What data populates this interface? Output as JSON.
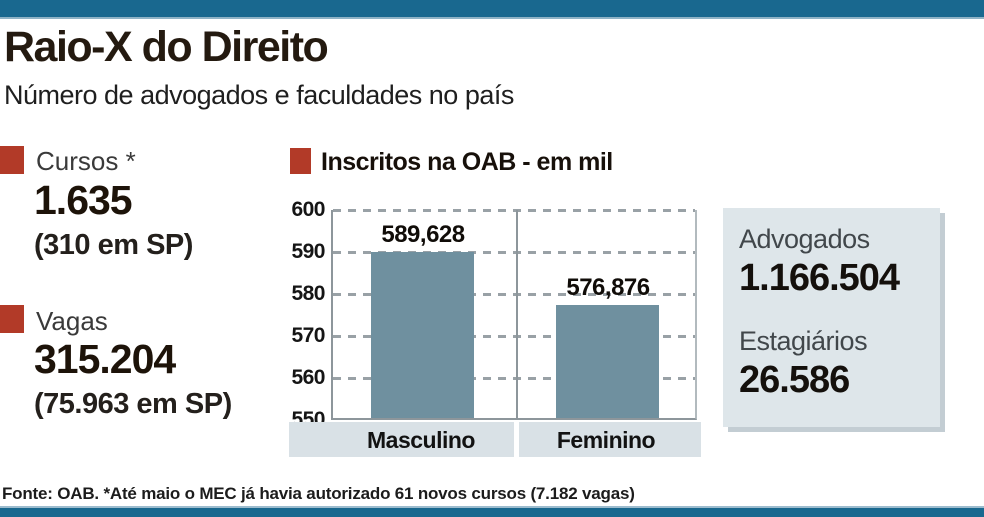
{
  "header": {
    "title": "Raio-X do Direito",
    "subtitle": "Número de advogados e faculdades no país"
  },
  "stats": [
    {
      "label": "Cursos *",
      "value": "1.635",
      "note": "(310 em SP)"
    },
    {
      "label": "Vagas",
      "value": "315.204",
      "note": "(75.963 em SP)"
    }
  ],
  "chart_data": {
    "type": "bar",
    "title": "Inscritos na OAB - em mil",
    "categories": [
      "Masculino",
      "Feminino"
    ],
    "values": [
      589.628,
      576.876
    ],
    "value_labels": [
      "589,628",
      "576,876"
    ],
    "unit": "mil",
    "ylim": [
      550,
      600
    ],
    "yticks": [
      550,
      560,
      570,
      580,
      590,
      600
    ],
    "grid": "dashed-horizontal",
    "legend": "none",
    "bar_color": "#6f909f"
  },
  "summary_box": {
    "items": [
      {
        "label": "Advogados",
        "value": "1.166.504"
      },
      {
        "label": "Estagiários",
        "value": "26.586"
      }
    ]
  },
  "footer": {
    "source": "Fonte: OAB. *Até maio o MEC já havia autorizado 61 novos cursos (7.182 vagas)"
  },
  "colors": {
    "accent_red": "#b23a28",
    "frame_blue": "#19688f",
    "bar_fill": "#6f909f",
    "band_bg": "#d9e1e6",
    "box_bg": "#dee6ea"
  }
}
